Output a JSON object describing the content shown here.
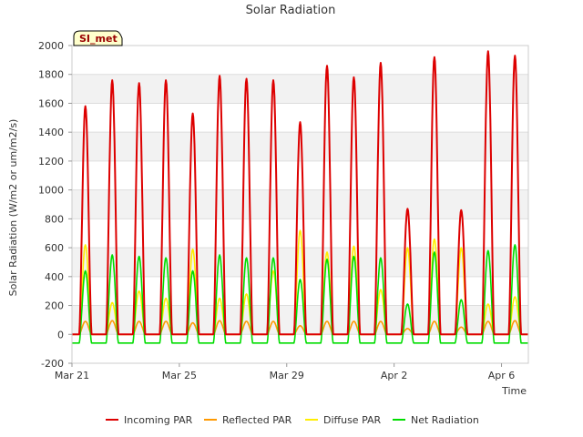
{
  "chart_data": {
    "type": "line",
    "title": "Solar Radiation",
    "xlabel": "Time",
    "ylabel": "Solar Radiation (W/m2 or um/m2/s)",
    "station_label": "SI_met",
    "ylim": [
      -200,
      2000
    ],
    "yticks": [
      -200,
      0,
      200,
      400,
      600,
      800,
      1000,
      1200,
      1400,
      1600,
      1800,
      2000
    ],
    "xlim": [
      "2021-03-21",
      "2021-04-07"
    ],
    "xticks": [
      {
        "date": "2021-03-21",
        "label": "Mar 21"
      },
      {
        "date": "2021-03-25",
        "label": "Mar 25"
      },
      {
        "date": "2021-03-29",
        "label": "Mar 29"
      },
      {
        "date": "2021-04-02",
        "label": "Apr 2"
      },
      {
        "date": "2021-04-06",
        "label": "Apr 6"
      }
    ],
    "grid": true,
    "legend_position": "bottom",
    "days": [
      "2021-03-21",
      "2021-03-22",
      "2021-03-23",
      "2021-03-24",
      "2021-03-25",
      "2021-03-26",
      "2021-03-27",
      "2021-03-28",
      "2021-03-29",
      "2021-03-30",
      "2021-03-31",
      "2021-04-01",
      "2021-04-02",
      "2021-04-03",
      "2021-04-04",
      "2021-04-05",
      "2021-04-06"
    ],
    "series": [
      {
        "name": "Incoming PAR",
        "color": "#dd0000",
        "daily_peak": [
          1580,
          1760,
          1740,
          1760,
          1530,
          1790,
          1770,
          1760,
          1470,
          1860,
          1780,
          1880,
          870,
          1920,
          860,
          1960,
          1930
        ],
        "night_value": 0
      },
      {
        "name": "Reflected PAR",
        "color": "#ff9900",
        "daily_peak": [
          90,
          95,
          90,
          90,
          80,
          95,
          90,
          90,
          60,
          90,
          90,
          90,
          40,
          90,
          50,
          90,
          95
        ],
        "night_value": 0
      },
      {
        "name": "Diffuse PAR",
        "color": "#ffee00",
        "daily_peak": [
          620,
          220,
          300,
          250,
          590,
          250,
          280,
          440,
          720,
          570,
          610,
          310,
          600,
          660,
          600,
          210,
          260
        ],
        "night_value": 0
      },
      {
        "name": "Net Radiation",
        "color": "#00dd00",
        "daily_peak": [
          440,
          550,
          540,
          530,
          440,
          550,
          530,
          530,
          380,
          520,
          540,
          530,
          210,
          570,
          240,
          580,
          620
        ],
        "night_value": -60
      }
    ]
  }
}
